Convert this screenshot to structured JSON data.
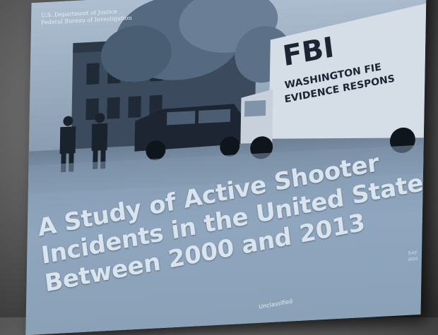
{
  "cover": {
    "agency_line1": "U.S. Department of Justice",
    "agency_line2": "Federal Bureau of Investigation",
    "title_lines": [
      "A Study of Active Shooter",
      "Incidents in the United States",
      "Between 2000 and 2013"
    ],
    "classification": "Unclassified",
    "side_note": [
      "Sep",
      "Was"
    ]
  },
  "photo": {
    "truck_logo": "FBI",
    "truck_line1": "WASHINGTON FIE",
    "truck_line2": "EVIDENCE RESPONS"
  }
}
